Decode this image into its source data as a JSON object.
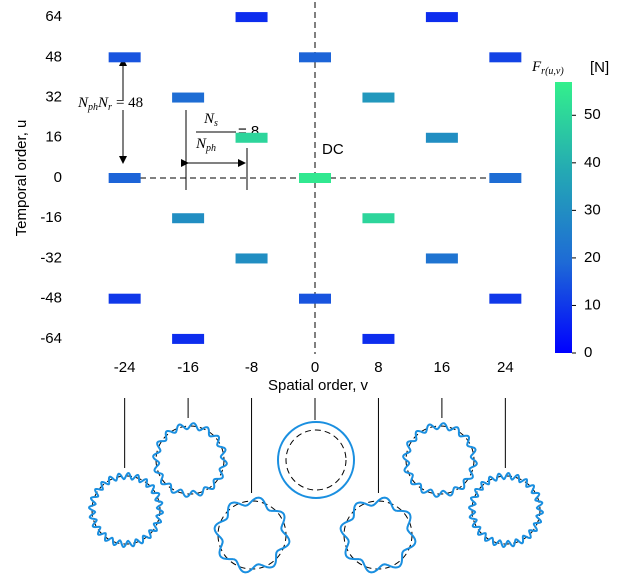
{
  "chart_data": {
    "type": "heatmap-bars",
    "x_label": "Spatial order, v",
    "y_label": "Temporal order, u",
    "colorbar_label": "[N]",
    "colorbar_symbol": [
      "F",
      "r(u,v)"
    ],
    "annotation_dc": "DC",
    "annotation_rotor": [
      "N",
      "ph",
      "N",
      "r",
      "= 48"
    ],
    "annotation_stator": [
      "N",
      "s",
      "N",
      "ph",
      "= 8"
    ],
    "x": [
      -24,
      -24,
      -24,
      -16,
      -16,
      -16,
      -8,
      -8,
      -8,
      0,
      0,
      0,
      8,
      8,
      8,
      16,
      16,
      16,
      24,
      24,
      24
    ],
    "y": [
      48,
      0,
      -48,
      32,
      -16,
      -64,
      64,
      16,
      -32,
      48,
      0,
      -48,
      32,
      -16,
      -64,
      64,
      16,
      -32,
      48,
      0,
      -48
    ],
    "values": [
      15,
      18,
      10,
      20,
      30,
      8,
      8,
      50,
      30,
      18,
      55,
      15,
      33,
      50,
      8,
      8,
      30,
      22,
      12,
      20,
      10
    ],
    "xlim": [
      -29,
      29
    ],
    "ylim": [
      -70,
      70
    ],
    "xticks": [
      -24,
      -16,
      -8,
      0,
      8,
      16,
      24
    ],
    "yticks": [
      64,
      48,
      32,
      16,
      0,
      -16,
      -32,
      -48,
      -64
    ],
    "clim": [
      0,
      57
    ],
    "cticks": [
      0,
      10,
      20,
      30,
      40,
      50
    ],
    "colorscale": [
      "#0000ff",
      "#1e6ad6",
      "#24a8b4",
      "#33f08c"
    ]
  }
}
